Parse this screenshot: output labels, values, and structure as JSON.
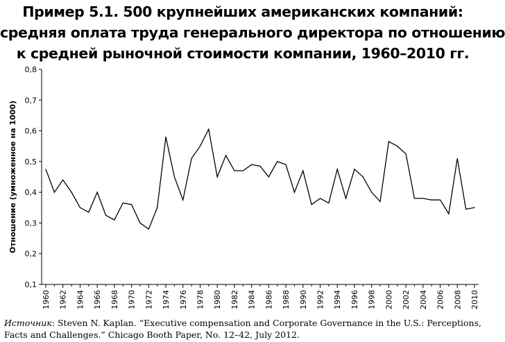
{
  "title_lines": [
    "Пример 5.1. 500 крупнейших американских компаний:",
    "средняя оплата труда генерального директора по отношению",
    "к средней рыночной стоимости компании, 1960–2010 гг."
  ],
  "source": {
    "label": "Источник",
    "text": ": Steven N. Kaplan. “Executive compensation and Corporate Governance in the U.S.: Perceptions, Facts and Challenges.” Chicago Booth Paper, No. 12–42, July 2012."
  },
  "chart_data": {
    "type": "line",
    "title": "Пример 5.1. 500 крупнейших американских компаний: средняя оплата труда генерального директора по отношению к средней рыночной стоимости компании, 1960–2010 гг.",
    "xlabel": "",
    "ylabel": "Отношение (умноженное на 1000)",
    "xlim": [
      1960,
      2010
    ],
    "ylim": [
      0.1,
      0.8
    ],
    "yticks": [
      0.1,
      0.2,
      0.3,
      0.4,
      0.5,
      0.6,
      0.7,
      0.8
    ],
    "ytick_labels": [
      "0,1",
      "0,2",
      "0,3",
      "0,4",
      "0,5",
      "0,6",
      "0,7",
      "0,8"
    ],
    "xticks": [
      1960,
      1962,
      1964,
      1966,
      1968,
      1970,
      1972,
      1974,
      1976,
      1978,
      1980,
      1982,
      1984,
      1986,
      1988,
      1990,
      1992,
      1994,
      1996,
      1998,
      2000,
      2002,
      2004,
      2006,
      2008,
      2010
    ],
    "grid": false,
    "line_color": "#000000",
    "x": [
      1960,
      1961,
      1962,
      1963,
      1964,
      1965,
      1966,
      1967,
      1968,
      1969,
      1970,
      1971,
      1972,
      1973,
      1974,
      1975,
      1976,
      1977,
      1978,
      1979,
      1980,
      1981,
      1982,
      1983,
      1984,
      1985,
      1986,
      1987,
      1988,
      1989,
      1990,
      1991,
      1992,
      1993,
      1994,
      1995,
      1996,
      1997,
      1998,
      1999,
      2000,
      2001,
      2002,
      2003,
      2004,
      2005,
      2006,
      2007,
      2008,
      2009,
      2010
    ],
    "values": [
      0.475,
      0.4,
      0.44,
      0.4,
      0.35,
      0.335,
      0.4,
      0.325,
      0.31,
      0.365,
      0.36,
      0.3,
      0.28,
      0.35,
      0.58,
      0.45,
      0.375,
      0.51,
      0.55,
      0.605,
      0.45,
      0.52,
      0.47,
      0.47,
      0.49,
      0.485,
      0.45,
      0.5,
      0.49,
      0.4,
      0.47,
      0.36,
      0.38,
      0.365,
      0.475,
      0.38,
      0.475,
      0.45,
      0.4,
      0.37,
      0.565,
      0.55,
      0.525,
      0.38,
      0.38,
      0.375,
      0.375,
      0.33,
      0.51,
      0.345,
      0.35
    ]
  }
}
